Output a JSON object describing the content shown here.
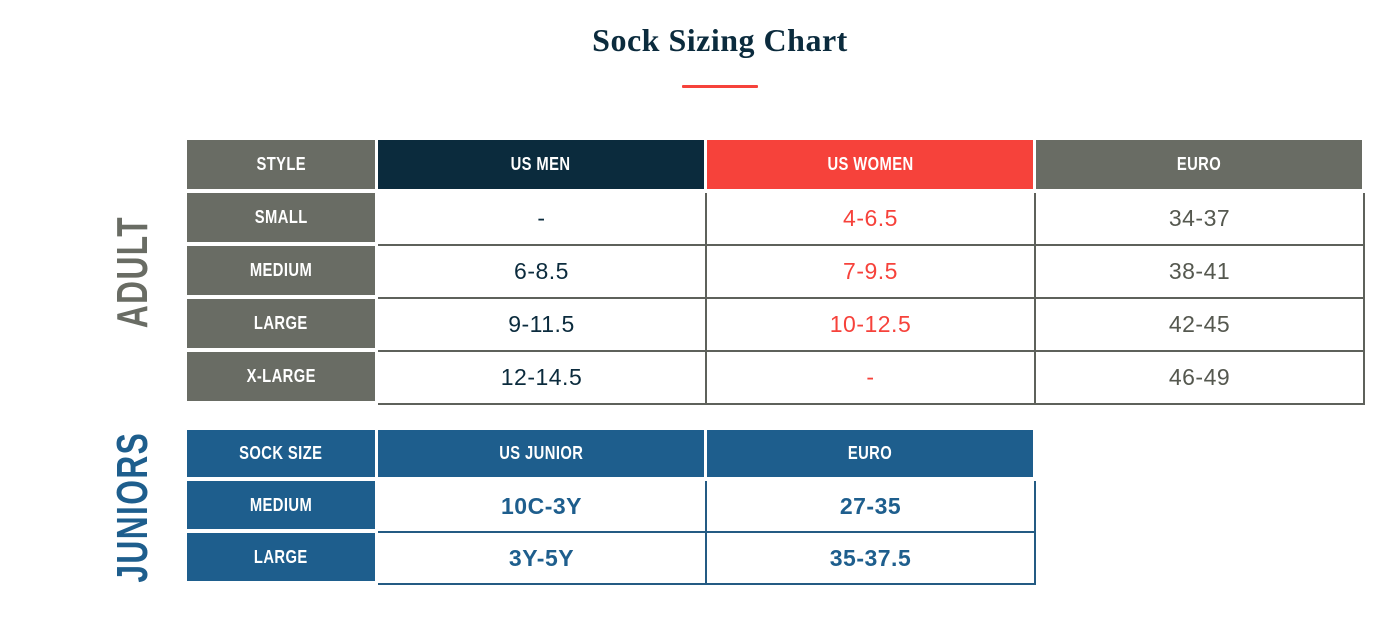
{
  "title": "Sock Sizing Chart",
  "chart_data": [
    {
      "type": "table",
      "section_label": "ADULT",
      "columns": [
        "STYLE",
        "US MEN",
        "US WOMEN",
        "EURO"
      ],
      "rows": [
        [
          "SMALL",
          "-",
          "4-6.5",
          "34-37"
        ],
        [
          "MEDIUM",
          "6-8.5",
          "7-9.5",
          "38-41"
        ],
        [
          "LARGE",
          "9-11.5",
          "10-12.5",
          "42-45"
        ],
        [
          "X-LARGE",
          "12-14.5",
          "-",
          "46-49"
        ]
      ]
    },
    {
      "type": "table",
      "section_label": "JUNIORS",
      "columns": [
        "SOCK SIZE",
        "US JUNIOR",
        "EURO"
      ],
      "rows": [
        [
          "MEDIUM",
          "10C-3Y",
          "27-35"
        ],
        [
          "LARGE",
          "3Y-5Y",
          "35-37.5"
        ]
      ]
    }
  ],
  "colors": {
    "navy": "#0b2b3d",
    "accent_red": "#f6423b",
    "gray": "#696c64",
    "gray_border": "#5e615b",
    "gray_text": "#55584f",
    "blue": "#1e5e8d",
    "blue_border": "#245b83"
  }
}
